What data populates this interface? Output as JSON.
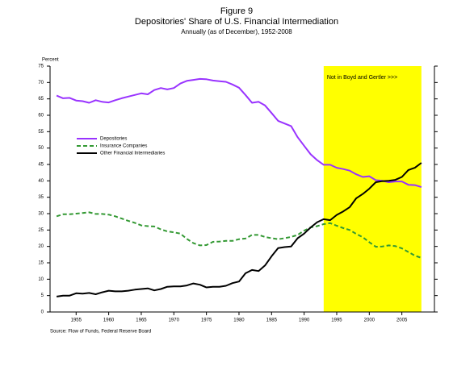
{
  "chart_data": {
    "type": "line",
    "title": "Figure 9",
    "subtitle": "Depositories' Share of U.S. Financial Intermediation",
    "note": "Annually (as of December), 1952-2008",
    "ylabel": "Percent",
    "source": "Source: Flow of Funds, Federal Reserve Board",
    "x": [
      1952,
      1953,
      1954,
      1955,
      1956,
      1957,
      1958,
      1959,
      1960,
      1961,
      1962,
      1963,
      1964,
      1965,
      1966,
      1967,
      1968,
      1969,
      1970,
      1971,
      1972,
      1973,
      1974,
      1975,
      1976,
      1977,
      1978,
      1979,
      1980,
      1981,
      1982,
      1983,
      1984,
      1985,
      1986,
      1987,
      1988,
      1989,
      1990,
      1991,
      1992,
      1993,
      1994,
      1995,
      1996,
      1997,
      1998,
      1999,
      2000,
      2001,
      2002,
      2003,
      2004,
      2005,
      2006,
      2007,
      2008
    ],
    "series": [
      {
        "name": "Depositories",
        "color": "#9933ff",
        "style": "solid",
        "values": [
          66,
          65.2,
          65.3,
          64.5,
          64.3,
          63.8,
          64.6,
          64.1,
          63.9,
          64.6,
          65.2,
          65.7,
          66.2,
          66.7,
          66.4,
          67.7,
          68.3,
          67.9,
          68.3,
          69.7,
          70.5,
          70.8,
          71.1,
          71,
          70.6,
          70.4,
          70.2,
          69.4,
          68.4,
          66.2,
          63.8,
          64.1,
          63,
          60.7,
          58.3,
          57.5,
          56.7,
          53.3,
          50.7,
          48.1,
          46.3,
          44.9,
          44.9,
          44,
          43.6,
          43.1,
          42,
          41.2,
          41.4,
          40.2,
          40,
          39.6,
          39.8,
          39.8,
          38.8,
          38.7,
          38.1
        ]
      },
      {
        "name": "Insurance Companies",
        "color": "#339933",
        "style": "dashed",
        "values": [
          29.2,
          29.8,
          29.8,
          30,
          30.2,
          30.4,
          29.9,
          29.9,
          29.7,
          29.2,
          28.5,
          27.8,
          27.2,
          26.4,
          26.2,
          26.1,
          25.2,
          24.6,
          24.3,
          23.9,
          22.3,
          21,
          20.3,
          20.4,
          21.4,
          21.5,
          21.7,
          21.7,
          22.2,
          22.4,
          23.5,
          23.5,
          22.9,
          22.5,
          22.2,
          22.5,
          22.9,
          23.5,
          24.8,
          25.8,
          26.2,
          26.8,
          27.1,
          26.3,
          25.6,
          25,
          23.8,
          22.8,
          21.3,
          19.9,
          20,
          20.3,
          20.1,
          19.4,
          18.3,
          17.2,
          16.5
        ]
      },
      {
        "name": "Other Financial Intermediaries",
        "color": "#000000",
        "style": "solid",
        "values": [
          4.7,
          5,
          5,
          5.7,
          5.6,
          5.8,
          5.4,
          6,
          6.5,
          6.3,
          6.3,
          6.5,
          6.8,
          7,
          7.2,
          6.6,
          7,
          7.7,
          7.8,
          7.8,
          8.1,
          8.7,
          8.3,
          7.5,
          7.7,
          7.7,
          8,
          8.8,
          9.3,
          11.8,
          12.8,
          12.5,
          14.2,
          17,
          19.5,
          19.8,
          20,
          22.5,
          23.9,
          25.8,
          27.4,
          28.3,
          28,
          29.6,
          30.7,
          32,
          34.7,
          36,
          37.6,
          39.6,
          39.9,
          40,
          40.3,
          41.2,
          43.3,
          44,
          45.5
        ]
      }
    ],
    "shade": {
      "from": 1993,
      "to": 2008,
      "color": "#ffff00",
      "label": "Not in Boyd and Gertler >>>"
    },
    "xlim": [
      1951,
      2010
    ],
    "xticks": [
      1955,
      1960,
      1965,
      1970,
      1975,
      1980,
      1985,
      1990,
      1995,
      2000,
      2005
    ],
    "ylim": [
      0,
      75
    ],
    "yticks": [
      0,
      5,
      10,
      15,
      20,
      25,
      30,
      35,
      40,
      45,
      50,
      55,
      60,
      65,
      70,
      75
    ],
    "grid": false
  }
}
